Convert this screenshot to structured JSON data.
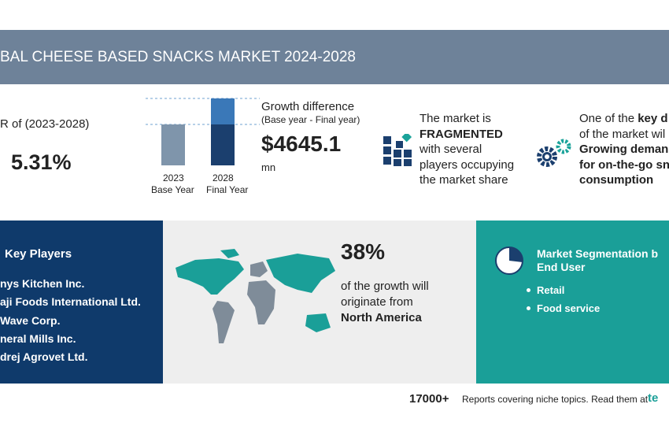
{
  "header": {
    "title": "BAL CHEESE BASED SNACKS MARKET 2024-2028"
  },
  "cagr": {
    "label": "R of (2023-2028)",
    "value": "5.31%"
  },
  "growth": {
    "label": "Growth difference",
    "sublabel": "(Base year - Final year)",
    "value": "$4645.1",
    "unit": "mn",
    "bars": [
      {
        "year": "2023",
        "label": "Base Year"
      },
      {
        "year": "2028",
        "label": "Final Year"
      }
    ]
  },
  "market": {
    "lines": [
      "The market is",
      "FRAGMENTED",
      "with several",
      "players occupying",
      "the market share"
    ]
  },
  "drivers": {
    "lead": "One of the ",
    "lead_bold": "key d",
    "line2": "of the market wil",
    "bold_lines": [
      "Growing deman",
      "for on-the-go sn",
      "consumption"
    ]
  },
  "key_players": {
    "title": "Key Players",
    "items": [
      "nys Kitchen Inc.",
      "aji Foods International Ltd.",
      "Wave Corp.",
      "neral Mills Inc.",
      "drej Agrovet Ltd."
    ]
  },
  "region": {
    "share": "38%",
    "lines": [
      "of the growth will",
      "originate from"
    ],
    "name": "North America"
  },
  "segmentation": {
    "title": [
      "Market Segmentation b",
      "End User"
    ],
    "items": [
      "Retail",
      "Food service"
    ]
  },
  "footer": {
    "count": "17000+",
    "text": "Reports covering niche topics. Read them at",
    "logo": "te"
  }
}
